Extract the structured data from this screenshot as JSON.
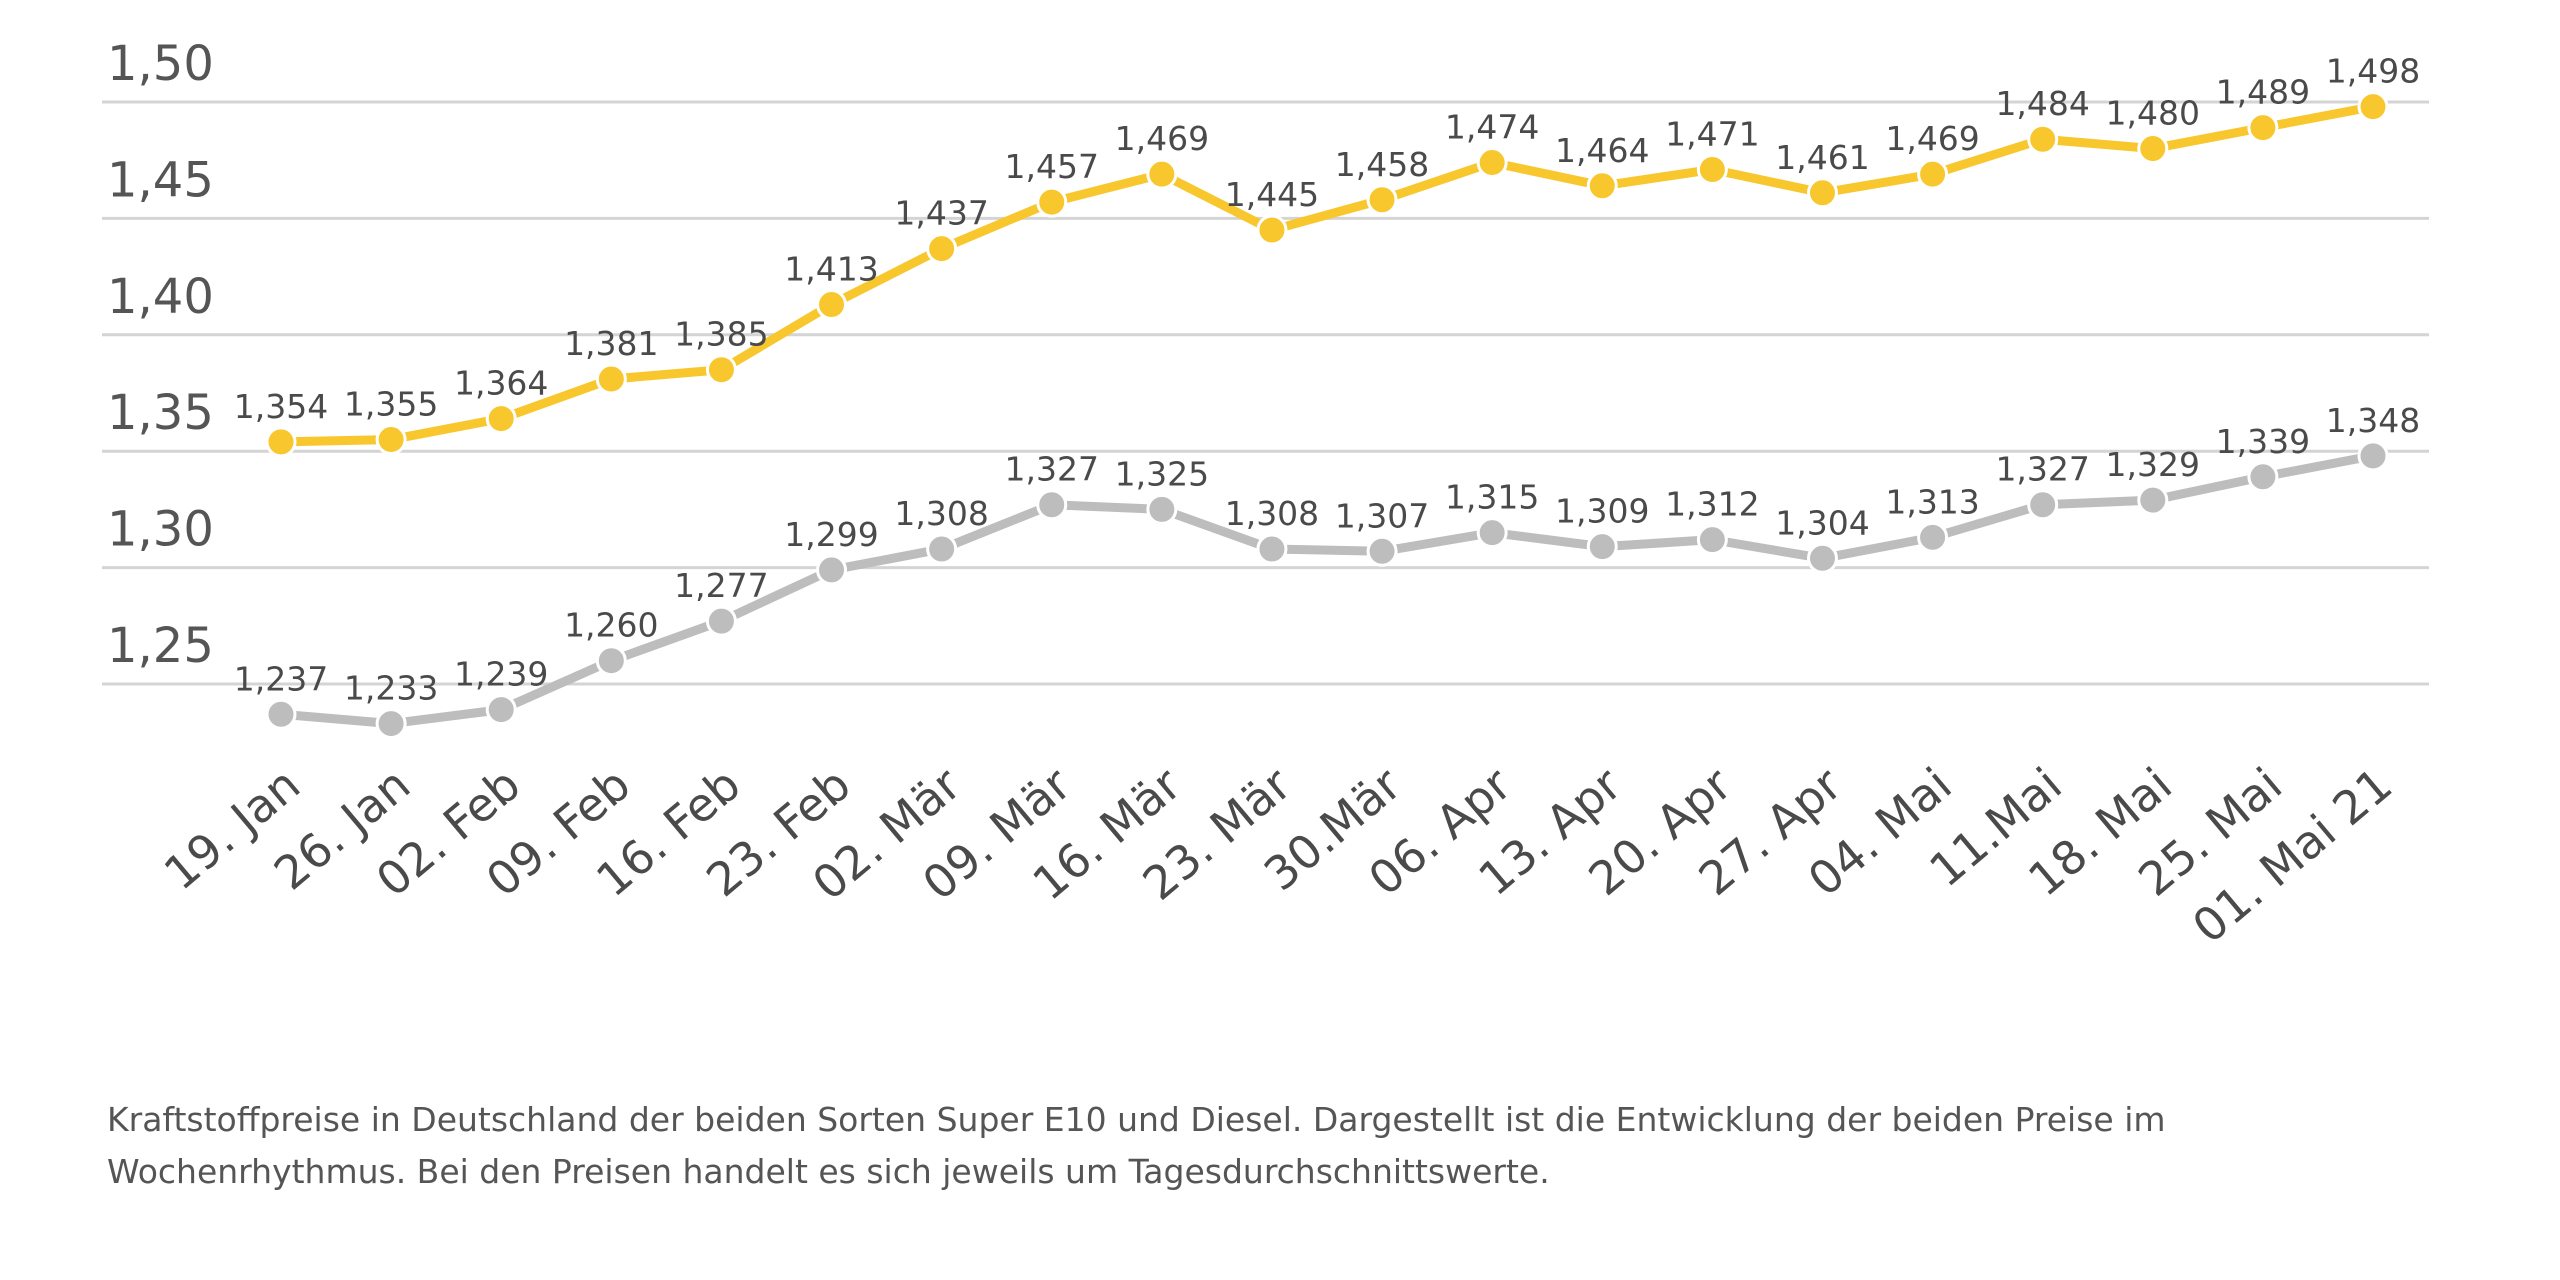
{
  "chart_data": {
    "type": "line",
    "categories": [
      "19. Jan",
      "26. Jan",
      "02. Feb",
      "09. Feb",
      "16. Feb",
      "23. Feb",
      "02. Mär",
      "09. Mär",
      "16. Mär",
      "23. Mär",
      "30.Mär",
      "06. Apr",
      "13. Apr",
      "20. Apr",
      "27. Apr",
      "04. Mai",
      "11.Mai",
      "18. Mai",
      "25. Mai",
      "01. Mai 21"
    ],
    "series": [
      {
        "color": "#F8C72E",
        "values": [
          1.354,
          1.355,
          1.364,
          1.381,
          1.385,
          1.413,
          1.437,
          1.457,
          1.469,
          1.445,
          1.458,
          1.474,
          1.464,
          1.471,
          1.461,
          1.469,
          1.484,
          1.48,
          1.489,
          1.498
        ],
        "labels": [
          "1,354",
          "1,355",
          "1,364",
          "1,381",
          "1,385",
          "1,413",
          "1,437",
          "1,457",
          "1,469",
          "1,445",
          "1,458",
          "1,474",
          "1,464",
          "1,471",
          "1,461",
          "1,469",
          "1,484",
          "1,480",
          "1,489",
          "1,498"
        ]
      },
      {
        "color": "#BDBDBD",
        "values": [
          1.237,
          1.233,
          1.239,
          1.26,
          1.277,
          1.299,
          1.308,
          1.327,
          1.325,
          1.308,
          1.307,
          1.315,
          1.309,
          1.312,
          1.304,
          1.313,
          1.327,
          1.329,
          1.339,
          1.348
        ],
        "labels": [
          "1,237",
          "1,233",
          "1,239",
          "1,260",
          "1,277",
          "1,299",
          "1,308",
          "1,327",
          "1,325",
          "1,308",
          "1,307",
          "1,315",
          "1,309",
          "1,312",
          "1,304",
          "1,313",
          "1,327",
          "1,329",
          "1,339",
          "1,348"
        ]
      }
    ],
    "yticks": [
      1.5,
      1.45,
      1.4,
      1.35,
      1.3,
      1.25
    ],
    "ytick_labels": [
      "1,50",
      "1,45",
      "1,40",
      "1,35",
      "1,30",
      "1,25"
    ],
    "ylim": [
      1.25,
      1.5
    ],
    "grid": true,
    "title": "",
    "xlabel": "",
    "ylabel": ""
  },
  "caption": "Kraftstoffpreise in Deutschland der beiden Sorten Super E10 und Diesel. Dargestellt ist die Entwicklung der beiden Preise im Wochenrhythmus. Bei den Preisen handelt es sich jeweils um Tagesdurchschnittswerte."
}
